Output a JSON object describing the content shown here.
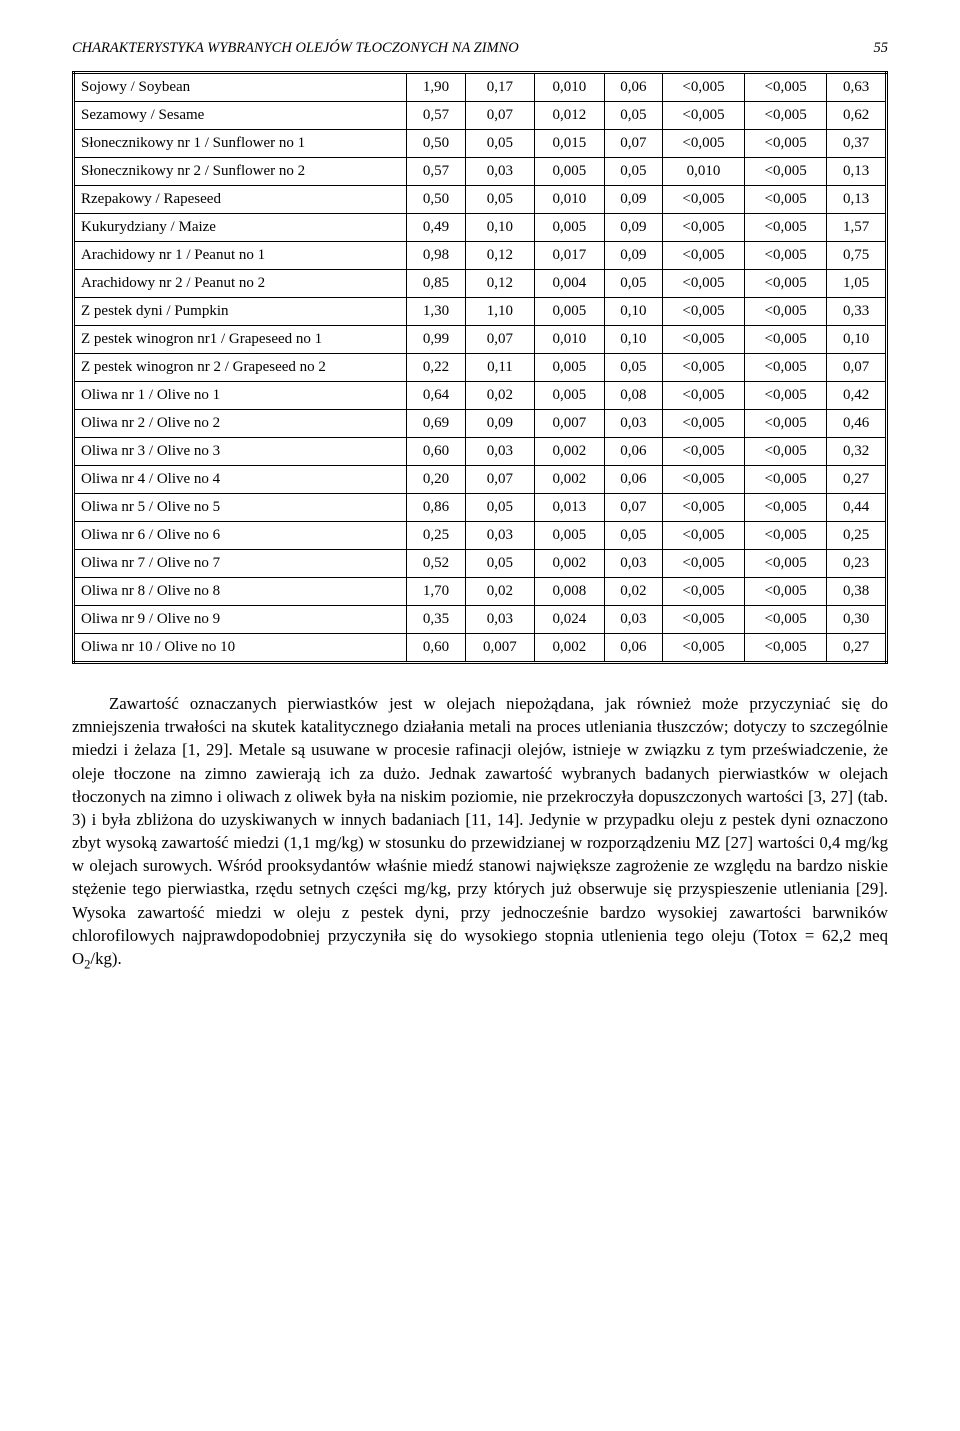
{
  "header": {
    "running_title": "CHARAKTERYSTYKA WYBRANYCH OLEJÓW TŁOCZONYCH NA ZIMNO",
    "page_number": "55"
  },
  "table": {
    "rows": [
      {
        "label": "Sojowy / Soybean",
        "v": [
          "1,90",
          "0,17",
          "0,010",
          "0,06",
          "<0,005",
          "<0,005",
          "0,63"
        ]
      },
      {
        "label": "Sezamowy / Sesame",
        "v": [
          "0,57",
          "0,07",
          "0,012",
          "0,05",
          "<0,005",
          "<0,005",
          "0,62"
        ]
      },
      {
        "label": "Słonecznikowy nr 1 / Sunflower no 1",
        "v": [
          "0,50",
          "0,05",
          "0,015",
          "0,07",
          "<0,005",
          "<0,005",
          "0,37"
        ]
      },
      {
        "label": "Słonecznikowy nr 2 / Sunflower no 2",
        "v": [
          "0,57",
          "0,03",
          "0,005",
          "0,05",
          "0,010",
          "<0,005",
          "0,13"
        ]
      },
      {
        "label": "Rzepakowy / Rapeseed",
        "v": [
          "0,50",
          "0,05",
          "0,010",
          "0,09",
          "<0,005",
          "<0,005",
          "0,13"
        ]
      },
      {
        "label": "Kukurydziany / Maize",
        "v": [
          "0,49",
          "0,10",
          "0,005",
          "0,09",
          "<0,005",
          "<0,005",
          "1,57"
        ]
      },
      {
        "label": "Arachidowy nr 1 / Peanut no 1",
        "v": [
          "0,98",
          "0,12",
          "0,017",
          "0,09",
          "<0,005",
          "<0,005",
          "0,75"
        ]
      },
      {
        "label": "Arachidowy nr 2 / Peanut no 2",
        "v": [
          "0,85",
          "0,12",
          "0,004",
          "0,05",
          "<0,005",
          "<0,005",
          "1,05"
        ]
      },
      {
        "label": "Z pestek dyni / Pumpkin",
        "v": [
          "1,30",
          "1,10",
          "0,005",
          "0,10",
          "<0,005",
          "<0,005",
          "0,33"
        ]
      },
      {
        "label": "Z pestek winogron nr1 / Grapeseed no 1",
        "v": [
          "0,99",
          "0,07",
          "0,010",
          "0,10",
          "<0,005",
          "<0,005",
          "0,10"
        ]
      },
      {
        "label": "Z pestek winogron nr 2 / Grapeseed no 2",
        "v": [
          "0,22",
          "0,11",
          "0,005",
          "0,05",
          "<0,005",
          "<0,005",
          "0,07"
        ]
      },
      {
        "label": "Oliwa nr 1 / Olive no 1",
        "v": [
          "0,64",
          "0,02",
          "0,005",
          "0,08",
          "<0,005",
          "<0,005",
          "0,42"
        ]
      },
      {
        "label": "Oliwa nr 2 / Olive no 2",
        "v": [
          "0,69",
          "0,09",
          "0,007",
          "0,03",
          "<0,005",
          "<0,005",
          "0,46"
        ]
      },
      {
        "label": "Oliwa nr 3 / Olive no 3",
        "v": [
          "0,60",
          "0,03",
          "0,002",
          "0,06",
          "<0,005",
          "<0,005",
          "0,32"
        ]
      },
      {
        "label": "Oliwa nr 4 / Olive no 4",
        "v": [
          "0,20",
          "0,07",
          "0,002",
          "0,06",
          "<0,005",
          "<0,005",
          "0,27"
        ]
      },
      {
        "label": "Oliwa nr 5 / Olive no 5",
        "v": [
          "0,86",
          "0,05",
          "0,013",
          "0,07",
          "<0,005",
          "<0,005",
          "0,44"
        ]
      },
      {
        "label": "Oliwa nr 6 / Olive no 6",
        "v": [
          "0,25",
          "0,03",
          "0,005",
          "0,05",
          "<0,005",
          "<0,005",
          "0,25"
        ]
      },
      {
        "label": "Oliwa nr 7 / Olive no 7",
        "v": [
          "0,52",
          "0,05",
          "0,002",
          "0,03",
          "<0,005",
          "<0,005",
          "0,23"
        ]
      },
      {
        "label": "Oliwa nr 8 / Olive no 8",
        "v": [
          "1,70",
          "0,02",
          "0,008",
          "0,02",
          "<0,005",
          "<0,005",
          "0,38"
        ]
      },
      {
        "label": "Oliwa nr 9 / Olive no 9",
        "v": [
          "0,35",
          "0,03",
          "0,024",
          "0,03",
          "<0,005",
          "<0,005",
          "0,30"
        ]
      },
      {
        "label": "Oliwa nr 10 / Olive no 10",
        "v": [
          "0,60",
          "0,007",
          "0,002",
          "0,06",
          "<0,005",
          "<0,005",
          "0,27"
        ]
      }
    ]
  },
  "paragraph": {
    "text_pre": "Zawartość oznaczanych pierwiastków jest w olejach niepożądana, jak również może przyczyniać się do zmniejszenia trwałości na skutek katalitycznego działania metali na proces utleniania tłuszczów; dotyczy to szczególnie miedzi i żelaza [1, 29]. Metale są usuwane w procesie rafinacji olejów, istnieje w związku z tym przeświadczenie, że oleje tłoczone na zimno zawierają ich za dużo. Jednak zawartość wybranych badanych pierwiastków w olejach tłoczonych na zimno i oliwach z oliwek była na niskim poziomie, nie przekroczyła dopuszczonych wartości [3, 27] (tab. 3) i była zbliżona do uzyskiwanych w innych badaniach [11, 14]. Jedynie w przypadku oleju z pestek dyni oznaczono zbyt wysoką zawartość miedzi (1,1 mg/kg) w stosunku do przewidzianej w rozporządzeniu MZ [27] wartości 0,4 mg/kg w olejach surowych. Wśród prooksydantów właśnie miedź stanowi największe zagrożenie ze względu na bardzo niskie stężenie tego pierwiastka, rzędu setnych części mg/kg, przy których już obserwuje się przyspieszenie utleniania [29]. Wysoka zawartość miedzi w oleju z pestek dyni, przy jednocześnie bardzo wysokiej zawartości barwników chlorofilowych najprawdopodobniej przyczyniła się do wysokiego stopnia utlenienia tego oleju (Totox = 62,2 meq O",
    "text_sub": "2",
    "text_post": "/kg)."
  }
}
